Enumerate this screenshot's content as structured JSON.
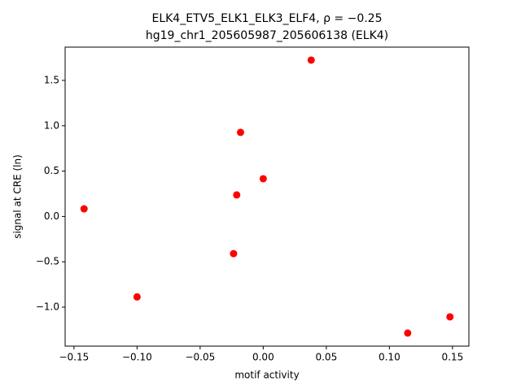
{
  "chart_data": {
    "type": "scatter",
    "title": "ELK4_ETV5_ELK1_ELK3_ELF4, ρ = −0.25",
    "subtitle": "hg19_chr1_205605987_205606138 (ELK4)",
    "x_label": "motif activity",
    "y_label": "signal at CRE (ln)",
    "color": "#ff0000",
    "series": [
      {
        "x": [
          -0.142,
          -0.1,
          -0.0235,
          -0.021,
          -0.018,
          0.0,
          0.038,
          0.1145,
          0.148
        ],
        "values": [
          0.084,
          -0.887,
          -0.41,
          0.237,
          0.927,
          0.416,
          1.724,
          -1.286,
          -1.107
        ]
      }
    ],
    "xlim": [
      -0.157,
      0.163
    ],
    "ylim": [
      -1.43,
      1.867
    ],
    "xticks": [
      {
        "value": -0.15,
        "label": "−0.15"
      },
      {
        "value": -0.1,
        "label": "−0.10"
      },
      {
        "value": -0.05,
        "label": "−0.05"
      },
      {
        "value": 0,
        "label": "0.00"
      },
      {
        "value": 0.05,
        "label": "0.05"
      },
      {
        "value": 0.1,
        "label": "0.10"
      },
      {
        "value": 0.15,
        "label": "0.15"
      }
    ],
    "yticks": [
      {
        "value": -1,
        "label": "−1.0"
      },
      {
        "value": -0.5,
        "label": "−0.5"
      },
      {
        "value": 0,
        "label": "0.0"
      },
      {
        "value": 0.5,
        "label": "0.5"
      },
      {
        "value": 1,
        "label": "1.0"
      },
      {
        "value": 1.5,
        "label": "1.5"
      }
    ]
  }
}
